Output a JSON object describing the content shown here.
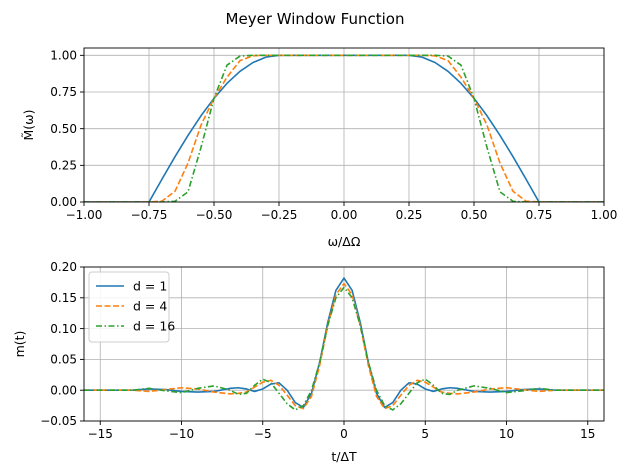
{
  "colors": {
    "blue": "#1f77b4",
    "orange": "#ff7f0e",
    "green": "#2ca02c",
    "grid": "#b0b0b0"
  },
  "chart_data": [
    {
      "type": "line",
      "title": "Meyer Window Function",
      "xlabel": "ω/ΔΩ",
      "ylabel": "M̃(ω)",
      "xlim": [
        -1.0,
        1.0
      ],
      "ylim": [
        0.0,
        1.05
      ],
      "xticks": [
        -1.0,
        -0.75,
        -0.5,
        -0.25,
        0.0,
        0.25,
        0.5,
        0.75,
        1.0
      ],
      "xtick_labels": [
        "−1.00",
        "−0.75",
        "−0.50",
        "−0.25",
        "0.00",
        "0.25",
        "0.50",
        "0.75",
        "1.00"
      ],
      "yticks": [
        0.0,
        0.25,
        0.5,
        0.75,
        1.0
      ],
      "ytick_labels": [
        "0.00",
        "0.25",
        "0.50",
        "0.75",
        "1.00"
      ],
      "grid": true,
      "legend": "none",
      "series": [
        {
          "name": "",
          "d": 1,
          "style": "solid",
          "x": [
            -1.0,
            -0.75,
            -0.7,
            -0.65,
            -0.6,
            -0.55,
            -0.5,
            -0.45,
            -0.4,
            -0.35,
            -0.3,
            -0.25,
            0.25,
            0.3,
            0.35,
            0.4,
            0.45,
            0.5,
            0.55,
            0.6,
            0.65,
            0.7,
            0.75,
            1.0
          ],
          "y": [
            0.0,
            0.0,
            0.156,
            0.309,
            0.454,
            0.588,
            0.707,
            0.809,
            0.891,
            0.951,
            0.988,
            1.0,
            1.0,
            0.988,
            0.951,
            0.891,
            0.809,
            0.707,
            0.588,
            0.454,
            0.309,
            0.156,
            0.0,
            0.0
          ]
        },
        {
          "name": "",
          "d": 4,
          "style": "dashed",
          "x": [
            -1.0,
            -0.75,
            -0.7,
            -0.65,
            -0.6,
            -0.55,
            -0.5,
            -0.45,
            -0.4,
            -0.35,
            -0.3,
            -0.25,
            0.25,
            0.3,
            0.35,
            0.4,
            0.45,
            0.5,
            0.55,
            0.6,
            0.65,
            0.7,
            0.75,
            1.0
          ],
          "y": [
            0.0,
            0.0,
            0.006,
            0.073,
            0.265,
            0.524,
            0.707,
            0.851,
            0.964,
            0.997,
            1.0,
            1.0,
            1.0,
            1.0,
            0.997,
            0.964,
            0.851,
            0.707,
            0.524,
            0.265,
            0.073,
            0.006,
            0.0,
            0.0
          ]
        },
        {
          "name": "",
          "d": 16,
          "style": "dashdot",
          "x": [
            -1.0,
            -0.75,
            -0.7,
            -0.65,
            -0.6,
            -0.55,
            -0.5,
            -0.45,
            -0.4,
            -0.35,
            -0.3,
            -0.25,
            0.25,
            0.3,
            0.35,
            0.4,
            0.45,
            0.5,
            0.55,
            0.6,
            0.65,
            0.7,
            0.75,
            1.0
          ],
          "y": [
            0.0,
            0.0,
            0.0,
            0.005,
            0.069,
            0.372,
            0.707,
            0.933,
            0.995,
            1.0,
            1.0,
            1.0,
            1.0,
            1.0,
            1.0,
            0.995,
            0.933,
            0.707,
            0.372,
            0.069,
            0.005,
            0.0,
            0.0,
            0.0
          ]
        }
      ]
    },
    {
      "type": "line",
      "title": "",
      "xlabel": "t/ΔT",
      "ylabel": "m(t)",
      "xlim": [
        -16,
        16
      ],
      "ylim": [
        -0.05,
        0.2
      ],
      "xticks": [
        -15,
        -10,
        -5,
        0,
        5,
        10,
        15
      ],
      "xtick_labels": [
        "−15",
        "−10",
        "−5",
        "0",
        "5",
        "10",
        "15"
      ],
      "yticks": [
        -0.05,
        0.0,
        0.05,
        0.1,
        0.15,
        0.2
      ],
      "ytick_labels": [
        "−0.05",
        "0.00",
        "0.05",
        "0.10",
        "0.15",
        "0.20"
      ],
      "grid": true,
      "legend": "top-left",
      "series": [
        {
          "name": "d = 1",
          "style": "solid",
          "x": [
            -16,
            -13,
            -12,
            -11,
            -10,
            -9,
            -8,
            -7,
            -6.5,
            -6,
            -5.5,
            -5,
            -4.5,
            -4,
            -3.5,
            -3,
            -2.5,
            -2,
            -1.5,
            -1,
            -0.5,
            0,
            0.5,
            1,
            1.5,
            2,
            2.5,
            3,
            3.5,
            4,
            4.5,
            5,
            5.5,
            6,
            6.5,
            7,
            8,
            9,
            10,
            11,
            12,
            13,
            16
          ],
          "y": [
            0.0,
            0.0,
            0.002,
            0.001,
            -0.002,
            -0.003,
            -0.002,
            0.003,
            0.004,
            0.002,
            -0.002,
            0.002,
            0.01,
            0.012,
            0.0,
            -0.02,
            -0.028,
            -0.005,
            0.045,
            0.11,
            0.162,
            0.182,
            0.162,
            0.11,
            0.045,
            -0.005,
            -0.028,
            -0.02,
            0.0,
            0.012,
            0.01,
            0.002,
            -0.002,
            0.002,
            0.004,
            0.003,
            -0.002,
            -0.003,
            -0.002,
            0.001,
            0.002,
            0.0,
            0.0
          ]
        },
        {
          "name": "d = 4",
          "style": "dashed",
          "x": [
            -16,
            -13,
            -12,
            -11,
            -10,
            -9,
            -8,
            -7,
            -6.5,
            -6,
            -5.5,
            -5,
            -4.5,
            -4,
            -3.5,
            -3,
            -2.5,
            -2,
            -1.5,
            -1,
            -0.5,
            0,
            0.5,
            1,
            1.5,
            2,
            2.5,
            3,
            3.5,
            4,
            4.5,
            5,
            5.5,
            6,
            6.5,
            7,
            8,
            9,
            10,
            11,
            12,
            13,
            16
          ],
          "y": [
            0.0,
            0.0,
            -0.002,
            0.001,
            0.004,
            0.002,
            -0.003,
            -0.006,
            -0.005,
            -0.003,
            0.005,
            0.013,
            0.016,
            0.008,
            -0.008,
            -0.025,
            -0.03,
            -0.01,
            0.04,
            0.105,
            0.155,
            0.173,
            0.155,
            0.105,
            0.04,
            -0.01,
            -0.03,
            -0.025,
            -0.008,
            0.008,
            0.016,
            0.013,
            0.005,
            -0.003,
            -0.005,
            -0.006,
            -0.003,
            0.002,
            0.004,
            0.001,
            -0.002,
            0.0,
            0.0
          ]
        },
        {
          "name": "d = 16",
          "style": "dashdot",
          "x": [
            -16,
            -13,
            -12,
            -11,
            -10,
            -9,
            -8,
            -7,
            -6.5,
            -6,
            -5.5,
            -5,
            -4.5,
            -4,
            -3.5,
            -3,
            -2.5,
            -2,
            -1.5,
            -1,
            -0.5,
            0,
            0.5,
            1,
            1.5,
            2,
            2.5,
            3,
            3.5,
            4,
            4.5,
            5,
            5.5,
            6,
            6.5,
            7,
            8,
            9,
            10,
            11,
            12,
            13,
            16
          ],
          "y": [
            0.0,
            0.0,
            0.003,
            -0.001,
            -0.004,
            0.003,
            0.007,
            0.0,
            -0.007,
            -0.005,
            0.008,
            0.018,
            0.012,
            -0.005,
            -0.022,
            -0.032,
            -0.025,
            0.0,
            0.045,
            0.105,
            0.15,
            0.167,
            0.15,
            0.105,
            0.045,
            0.0,
            -0.025,
            -0.032,
            -0.022,
            -0.005,
            0.012,
            0.018,
            0.008,
            -0.005,
            -0.007,
            0.0,
            0.007,
            0.003,
            -0.004,
            -0.001,
            0.003,
            0.0,
            0.0
          ]
        }
      ]
    }
  ]
}
